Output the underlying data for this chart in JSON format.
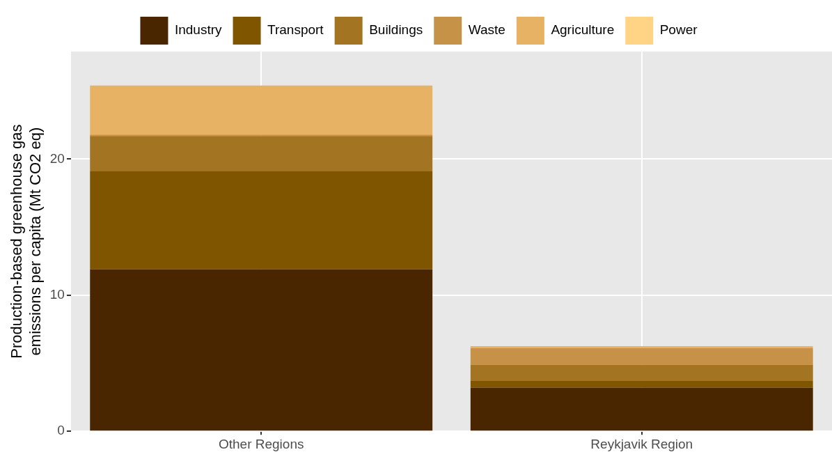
{
  "chart_data": {
    "type": "bar",
    "stacked": true,
    "ylabel": "Production-based greenhouse gas\nemissions per capita (Mt CO2 eq)",
    "categories": [
      "Other Regions",
      "Reykjavik Region"
    ],
    "series": [
      {
        "name": "Industry",
        "color": "#4a2600",
        "values": [
          11.9,
          3.2
        ]
      },
      {
        "name": "Transport",
        "color": "#7f5500",
        "values": [
          7.2,
          0.5
        ]
      },
      {
        "name": "Buildings",
        "color": "#a37422",
        "values": [
          2.6,
          1.2
        ]
      },
      {
        "name": "Waste",
        "color": "#c69247",
        "values": [
          0.1,
          1.2
        ]
      },
      {
        "name": "Agriculture",
        "color": "#e8b264",
        "values": [
          3.6,
          0.15
        ]
      },
      {
        "name": "Power",
        "color": "#ffd485",
        "values": [
          0,
          0
        ]
      }
    ],
    "ylim": [
      0,
      27.9
    ],
    "yticks": [
      0,
      10,
      20
    ],
    "grid": true,
    "legend": "top"
  }
}
